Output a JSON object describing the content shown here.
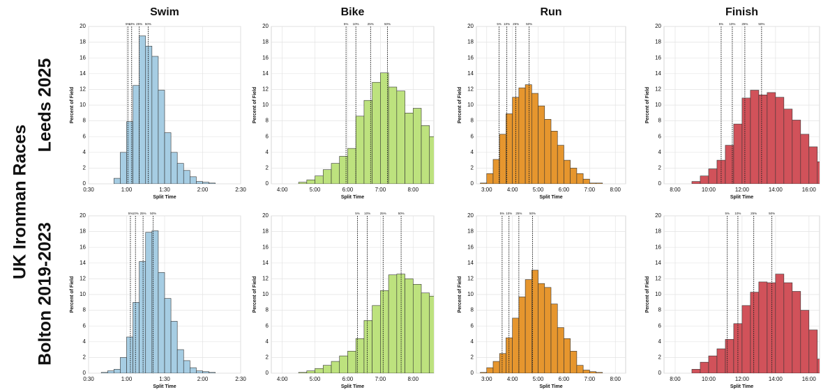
{
  "title": "UK Ironman Races",
  "column_titles": [
    "Swim",
    "Bike",
    "Run",
    "Finish"
  ],
  "row_titles": [
    "Leeds 2025",
    "Bolton 2019-2023"
  ],
  "chart_data": [
    {
      "type": "histogram",
      "xlabel": "Split Time",
      "ylabel": "Percent of Field",
      "color": "#a6cde3",
      "grid": true,
      "bins": [
        50,
        55,
        60,
        65,
        70,
        75,
        80,
        85,
        90,
        95,
        100,
        105,
        110,
        115,
        120,
        125,
        130
      ],
      "values": [
        0.7,
        4.0,
        7.9,
        12.5,
        18.8,
        17.5,
        16.2,
        11.9,
        6.5,
        4.0,
        2.6,
        1.7,
        0.9,
        0.3,
        0.2,
        0.1
      ],
      "xlim": [
        30,
        150
      ],
      "xticks": [
        {
          "value": 30,
          "label": "0:30"
        },
        {
          "value": 60,
          "label": "1:00"
        },
        {
          "value": 90,
          "label": "1:30"
        },
        {
          "value": 120,
          "label": "2:00"
        },
        {
          "value": 150,
          "label": "2:30"
        }
      ],
      "ylim": [
        0,
        20
      ],
      "yticks": [
        0,
        2,
        4,
        6,
        8,
        10,
        12,
        14,
        16,
        18,
        20
      ],
      "percentiles": [
        {
          "label": "5%",
          "value": 61
        },
        {
          "label": "10%",
          "value": 64
        },
        {
          "label": "25%",
          "value": 70
        },
        {
          "label": "50%",
          "value": 77
        }
      ]
    },
    {
      "type": "histogram",
      "xlabel": "Split Time",
      "ylabel": "Percent of Field",
      "color": "#bde27e",
      "grid": true,
      "bins": [
        270,
        285,
        300,
        315,
        330,
        345,
        360,
        375,
        390,
        405,
        420,
        435,
        450,
        465,
        480,
        495,
        510,
        525
      ],
      "values": [
        0.2,
        0.5,
        1.0,
        1.8,
        2.6,
        3.5,
        4.5,
        8.6,
        10.6,
        12.9,
        14.1,
        12.3,
        11.8,
        9.0,
        9.6,
        7.4,
        6.0
      ],
      "xlim": [
        220,
        518
      ],
      "xticks": [
        {
          "value": 240,
          "label": "4:00"
        },
        {
          "value": 300,
          "label": "5:00"
        },
        {
          "value": 360,
          "label": "6:00"
        },
        {
          "value": 420,
          "label": "7:00"
        },
        {
          "value": 480,
          "label": "8:00"
        }
      ],
      "ylim": [
        0,
        20
      ],
      "yticks": [
        0,
        2,
        4,
        6,
        8,
        10,
        12,
        14,
        16,
        18,
        20
      ],
      "percentiles": [
        {
          "label": "5%",
          "value": 357
        },
        {
          "label": "10%",
          "value": 375
        },
        {
          "label": "25%",
          "value": 402
        },
        {
          "label": "50%",
          "value": 433
        }
      ]
    },
    {
      "type": "histogram",
      "xlabel": "Split Time",
      "ylabel": "Percent of Field",
      "color": "#e6962e",
      "grid": true,
      "bins": [
        165,
        180,
        195,
        210,
        225,
        240,
        255,
        270,
        285,
        300,
        315,
        330,
        345,
        360,
        375,
        390,
        405,
        420,
        435,
        450
      ],
      "values": [
        0.1,
        1.3,
        3.1,
        6.3,
        8.9,
        11.0,
        12.2,
        12.6,
        11.5,
        9.9,
        8.2,
        6.7,
        4.9,
        3.0,
        2.0,
        1.3,
        0.6,
        0.1,
        0.1
      ],
      "xlim": [
        156,
        504
      ],
      "xticks": [
        {
          "value": 180,
          "label": "3:00"
        },
        {
          "value": 240,
          "label": "4:00"
        },
        {
          "value": 300,
          "label": "5:00"
        },
        {
          "value": 360,
          "label": "6:00"
        },
        {
          "value": 420,
          "label": "7:00"
        },
        {
          "value": 480,
          "label": "8:00"
        }
      ],
      "ylim": [
        0,
        20
      ],
      "yticks": [
        0,
        2,
        4,
        6,
        8,
        10,
        12,
        14,
        16,
        18,
        20
      ],
      "percentiles": [
        {
          "label": "5%",
          "value": 209
        },
        {
          "label": "10%",
          "value": 227
        },
        {
          "label": "25%",
          "value": 248
        },
        {
          "label": "50%",
          "value": 279
        }
      ]
    },
    {
      "type": "histogram",
      "xlabel": "Split Time",
      "ylabel": "Percent of Field",
      "color": "#d1525a",
      "grid": true,
      "bins": [
        540,
        570,
        600,
        630,
        660,
        690,
        720,
        750,
        780,
        810,
        840,
        870,
        900,
        930,
        960,
        990,
        1020
      ],
      "values": [
        0.3,
        1.0,
        1.9,
        3.0,
        4.9,
        7.6,
        10.9,
        11.9,
        11.3,
        11.6,
        11.0,
        9.5,
        8.1,
        6.3,
        4.7,
        2.8
      ],
      "xlim": [
        440,
        998
      ],
      "xticks": [
        {
          "value": 480,
          "label": "8:00"
        },
        {
          "value": 600,
          "label": "10:00"
        },
        {
          "value": 720,
          "label": "12:00"
        },
        {
          "value": 840,
          "label": "14:00"
        },
        {
          "value": 960,
          "label": "16:00"
        }
      ],
      "ylim": [
        0,
        20
      ],
      "yticks": [
        0,
        2,
        4,
        6,
        8,
        10,
        12,
        14,
        16,
        18,
        20
      ],
      "percentiles": [
        {
          "label": "5%",
          "value": 645
        },
        {
          "label": "10%",
          "value": 685
        },
        {
          "label": "25%",
          "value": 730
        },
        {
          "label": "50%",
          "value": 790
        }
      ]
    },
    {
      "type": "histogram",
      "xlabel": "Split Time",
      "ylabel": "Percent of Field",
      "color": "#a6cde3",
      "grid": true,
      "bins": [
        40,
        45,
        50,
        55,
        60,
        65,
        70,
        75,
        80,
        85,
        90,
        95,
        100,
        105,
        110,
        115,
        120,
        125,
        130
      ],
      "values": [
        0.1,
        0.3,
        0.5,
        2.0,
        4.6,
        9.0,
        14.2,
        17.9,
        18.1,
        12.8,
        9.5,
        6.6,
        3.0,
        1.6,
        0.7,
        0.3,
        0.2,
        0.1
      ],
      "xlim": [
        30,
        150
      ],
      "xticks": [
        {
          "value": 30,
          "label": "0:30"
        },
        {
          "value": 60,
          "label": "1:00"
        },
        {
          "value": 90,
          "label": "1:30"
        },
        {
          "value": 120,
          "label": "2:00"
        },
        {
          "value": 150,
          "label": "2:30"
        }
      ],
      "ylim": [
        0,
        20
      ],
      "yticks": [
        0,
        2,
        4,
        6,
        8,
        10,
        12,
        14,
        16,
        18,
        20
      ],
      "percentiles": [
        {
          "label": "5%",
          "value": 63
        },
        {
          "label": "10%",
          "value": 67
        },
        {
          "label": "25%",
          "value": 73
        },
        {
          "label": "50%",
          "value": 81
        }
      ]
    },
    {
      "type": "histogram",
      "xlabel": "Split Time",
      "ylabel": "Percent of Field",
      "color": "#bde27e",
      "grid": true,
      "bins": [
        270,
        285,
        300,
        315,
        330,
        345,
        360,
        375,
        390,
        405,
        420,
        435,
        450,
        465,
        480,
        495,
        510,
        525
      ],
      "values": [
        0.1,
        0.3,
        0.6,
        1.0,
        1.5,
        2.2,
        2.8,
        4.4,
        6.7,
        8.6,
        10.5,
        12.5,
        12.6,
        12.0,
        11.3,
        10.2,
        9.8
      ],
      "xlim": [
        220,
        518
      ],
      "xticks": [
        {
          "value": 240,
          "label": "4:00"
        },
        {
          "value": 300,
          "label": "5:00"
        },
        {
          "value": 360,
          "label": "6:00"
        },
        {
          "value": 420,
          "label": "7:00"
        },
        {
          "value": 480,
          "label": "8:00"
        }
      ],
      "ylim": [
        0,
        20
      ],
      "yticks": [
        0,
        2,
        4,
        6,
        8,
        10,
        12,
        14,
        16,
        18,
        20
      ],
      "percentiles": [
        {
          "label": "5%",
          "value": 378
        },
        {
          "label": "10%",
          "value": 396
        },
        {
          "label": "25%",
          "value": 425
        },
        {
          "label": "50%",
          "value": 458
        }
      ]
    },
    {
      "type": "histogram",
      "xlabel": "Split Time",
      "ylabel": "Percent of Field",
      "color": "#e6962e",
      "grid": true,
      "bins": [
        165,
        180,
        195,
        210,
        225,
        240,
        255,
        270,
        285,
        300,
        315,
        330,
        345,
        360,
        375,
        390,
        405,
        420,
        435,
        450
      ],
      "values": [
        0.1,
        0.7,
        1.5,
        2.5,
        4.5,
        7.0,
        9.7,
        11.9,
        13.1,
        11.4,
        10.9,
        8.8,
        5.8,
        4.4,
        2.8,
        1.0,
        0.4,
        0.2,
        0.1
      ],
      "xlim": [
        156,
        504
      ],
      "xticks": [
        {
          "value": 180,
          "label": "3:00"
        },
        {
          "value": 240,
          "label": "4:00"
        },
        {
          "value": 300,
          "label": "5:00"
        },
        {
          "value": 360,
          "label": "6:00"
        },
        {
          "value": 420,
          "label": "7:00"
        },
        {
          "value": 480,
          "label": "8:00"
        }
      ],
      "ylim": [
        0,
        20
      ],
      "yticks": [
        0,
        2,
        4,
        6,
        8,
        10,
        12,
        14,
        16,
        18,
        20
      ],
      "percentiles": [
        {
          "label": "5%",
          "value": 216
        },
        {
          "label": "10%",
          "value": 232
        },
        {
          "label": "25%",
          "value": 255
        },
        {
          "label": "50%",
          "value": 287
        }
      ]
    },
    {
      "type": "histogram",
      "xlabel": "Split Time",
      "ylabel": "Percent of Field",
      "color": "#d1525a",
      "grid": true,
      "bins": [
        540,
        570,
        600,
        630,
        660,
        690,
        720,
        750,
        780,
        810,
        840,
        870,
        900,
        930,
        960,
        990,
        1020
      ],
      "values": [
        0.5,
        1.4,
        2.2,
        3.1,
        4.3,
        6.3,
        8.6,
        10.3,
        11.6,
        11.5,
        12.6,
        11.5,
        10.4,
        8.0,
        5.5,
        1.8
      ],
      "xlim": [
        440,
        998
      ],
      "xticks": [
        {
          "value": 480,
          "label": "8:00"
        },
        {
          "value": 600,
          "label": "10:00"
        },
        {
          "value": 720,
          "label": "12:00"
        },
        {
          "value": 840,
          "label": "14:00"
        },
        {
          "value": 960,
          "label": "16:00"
        }
      ],
      "ylim": [
        0,
        20
      ],
      "yticks": [
        0,
        2,
        4,
        6,
        8,
        10,
        12,
        14,
        16,
        18,
        20
      ],
      "percentiles": [
        {
          "label": "5%",
          "value": 667
        },
        {
          "label": "10%",
          "value": 705
        },
        {
          "label": "25%",
          "value": 762
        },
        {
          "label": "50%",
          "value": 827
        }
      ]
    }
  ]
}
